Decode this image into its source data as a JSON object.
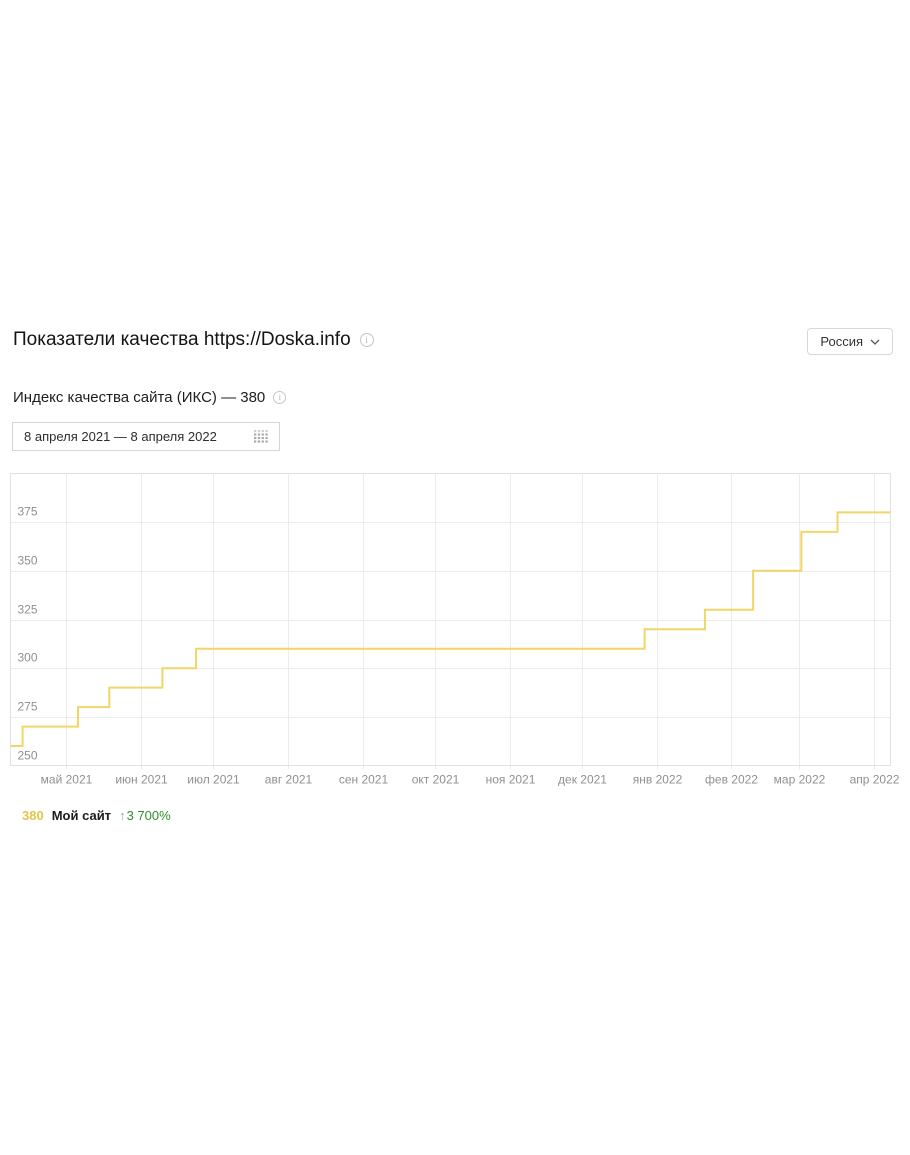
{
  "header": {
    "title": "Показатели качества https://Doska.info",
    "info_icon": "i",
    "region_selector": {
      "label": "Россия"
    }
  },
  "subtitle": {
    "text": "Индекс качества сайта (ИКС) — 380",
    "info_icon": "i"
  },
  "date_range": {
    "value": "8 апреля 2021 — 8 апреля 2022"
  },
  "chart_data": {
    "type": "line",
    "step": true,
    "title": "",
    "xlabel": "",
    "ylabel": "",
    "grid": true,
    "x_range": [
      "2021-04-08",
      "2022-04-08"
    ],
    "ylim": [
      250,
      400
    ],
    "y_ticks": [
      250,
      275,
      300,
      325,
      350,
      375
    ],
    "x_ticks": [
      {
        "date": "2021-05-01",
        "label": "май 2021"
      },
      {
        "date": "2021-06-01",
        "label": "июн 2021"
      },
      {
        "date": "2021-07-01",
        "label": "июл 2021"
      },
      {
        "date": "2021-08-01",
        "label": "авг 2021"
      },
      {
        "date": "2021-09-01",
        "label": "сен 2021"
      },
      {
        "date": "2021-10-01",
        "label": "окт 2021"
      },
      {
        "date": "2021-11-01",
        "label": "ноя 2021"
      },
      {
        "date": "2021-12-01",
        "label": "дек 2021"
      },
      {
        "date": "2022-01-01",
        "label": "янв 2022"
      },
      {
        "date": "2022-02-01",
        "label": "фев 2022"
      },
      {
        "date": "2022-03-01",
        "label": "мар 2022"
      },
      {
        "date": "2022-04-01",
        "label": "апр 2022"
      }
    ],
    "series": [
      {
        "name": "Мой сайт",
        "color": "#f1d667",
        "points": [
          {
            "date": "2021-04-08",
            "value": 260
          },
          {
            "date": "2021-04-13",
            "value": 270
          },
          {
            "date": "2021-05-06",
            "value": 280
          },
          {
            "date": "2021-05-19",
            "value": 290
          },
          {
            "date": "2021-06-10",
            "value": 300
          },
          {
            "date": "2021-06-24",
            "value": 310
          },
          {
            "date": "2021-12-27",
            "value": 320
          },
          {
            "date": "2022-01-21",
            "value": 330
          },
          {
            "date": "2022-02-10",
            "value": 350
          },
          {
            "date": "2022-03-02",
            "value": 370
          },
          {
            "date": "2022-03-17",
            "value": 380
          }
        ]
      }
    ],
    "legend_position": "bottom-left"
  },
  "legend": {
    "value": "380",
    "value_color": "#e2c64b",
    "name": "Мой сайт",
    "change_arrow": "↑",
    "change": "3 700%",
    "change_color": "#2f8f2f"
  },
  "colors": {
    "line": "#f1d667",
    "grid": "#ececec",
    "frame": "#e2e2e2",
    "axis_label": "#8f8f8f"
  }
}
